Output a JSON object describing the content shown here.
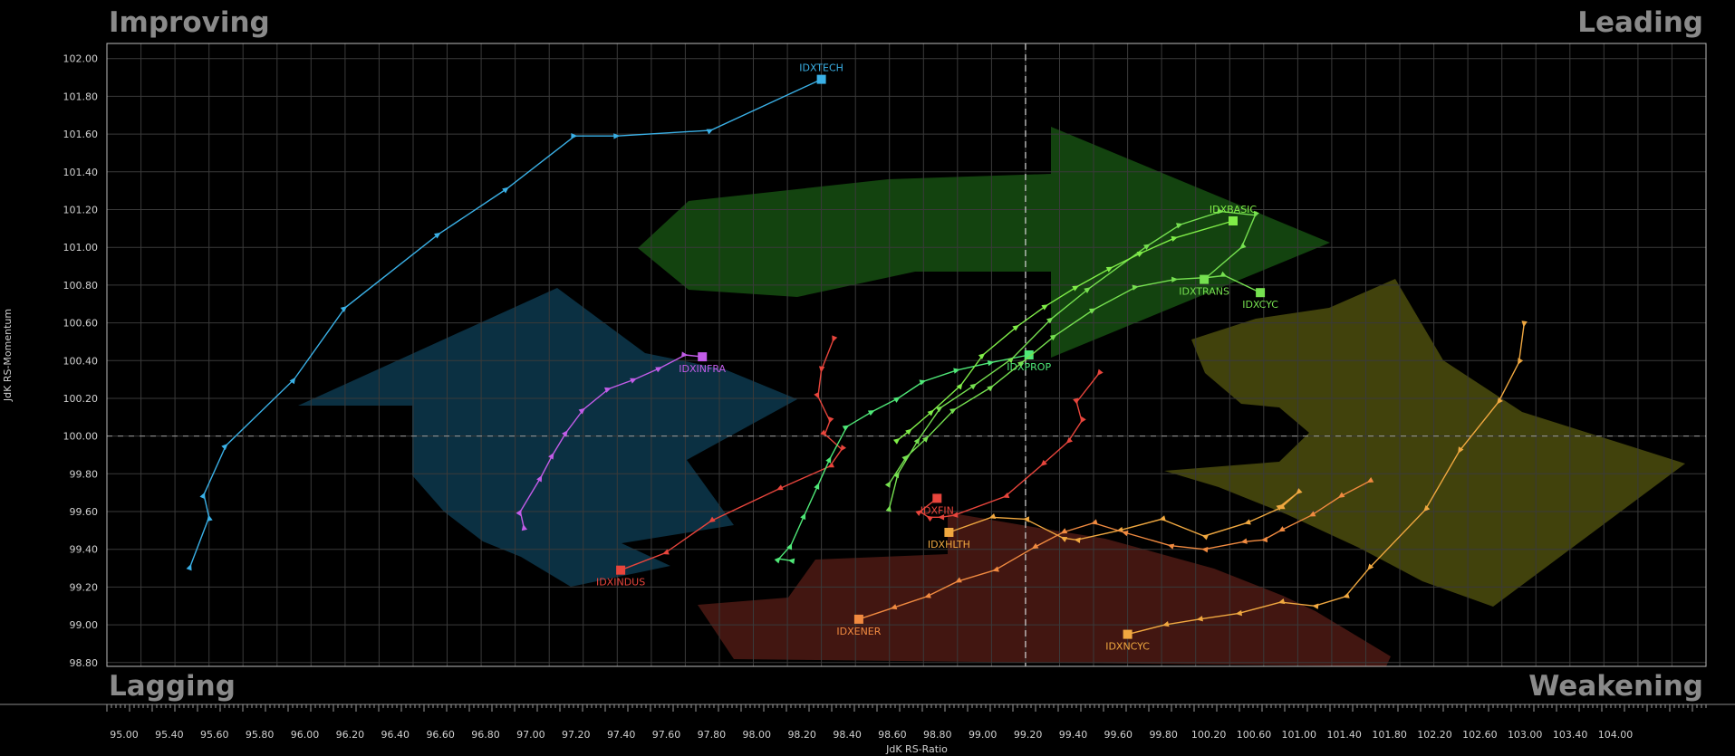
{
  "chart_data": {
    "type": "scatter",
    "title": "",
    "xlabel": "JdK RS-Ratio",
    "ylabel": "JdK RS-Momentum",
    "xlim": [
      94.6,
      104.0
    ],
    "ylim": [
      98.78,
      102.08
    ],
    "grid": true,
    "center": {
      "x": 100.0,
      "y": 100.0
    },
    "x_ticks": [
      "95.00",
      "95.40",
      "95.60",
      "95.80",
      "96.00",
      "96.20",
      "96.40",
      "96.60",
      "96.80",
      "97.00",
      "97.20",
      "97.40",
      "97.60",
      "97.80",
      "98.00",
      "98.20",
      "98.40",
      "98.60",
      "98.80",
      "99.00",
      "99.20",
      "99.40",
      "99.60",
      "99.80",
      "100.20",
      "100.60",
      "101.00",
      "101.40",
      "101.80",
      "102.20",
      "102.60",
      "103.00",
      "103.40",
      "104.00"
    ],
    "y_ticks": [
      "98.80",
      "99.00",
      "99.20",
      "99.40",
      "99.60",
      "99.80",
      "100.00",
      "100.20",
      "100.40",
      "100.60",
      "100.80",
      "101.00",
      "101.20",
      "101.40",
      "101.60",
      "101.80",
      "102.00"
    ],
    "quadrants": {
      "top_left": "Improving",
      "top_right": "Leading",
      "bottom_left": "Lagging",
      "bottom_right": "Weakening"
    },
    "series": [
      {
        "name": "IDXTECH",
        "color": "#3ab0e6",
        "points": [
          [
            95.09,
            99.31
          ],
          [
            95.2,
            99.57
          ],
          [
            95.17,
            99.69
          ],
          [
            95.3,
            99.95
          ],
          [
            95.7,
            100.3
          ],
          [
            96.0,
            100.68
          ],
          [
            96.55,
            101.07
          ],
          [
            96.95,
            101.31
          ],
          [
            97.35,
            101.59
          ],
          [
            97.6,
            101.59
          ],
          [
            98.15,
            101.62
          ],
          [
            98.8,
            101.89
          ]
        ]
      },
      {
        "name": "IDXINFRA",
        "color": "#c25ce8",
        "points": [
          [
            97.05,
            99.52
          ],
          [
            97.03,
            99.6
          ],
          [
            97.15,
            99.78
          ],
          [
            97.22,
            99.9
          ],
          [
            97.3,
            100.02
          ],
          [
            97.4,
            100.14
          ],
          [
            97.55,
            100.25
          ],
          [
            97.7,
            100.3
          ],
          [
            97.85,
            100.36
          ],
          [
            98.0,
            100.43
          ],
          [
            98.1,
            100.42
          ]
        ]
      },
      {
        "name": "IDXINDUS",
        "color": "#e8453c",
        "points": [
          [
            98.87,
            100.51
          ],
          [
            98.8,
            100.35
          ],
          [
            98.78,
            100.21
          ],
          [
            98.85,
            100.08
          ],
          [
            98.82,
            100.01
          ],
          [
            98.92,
            99.93
          ],
          [
            98.85,
            99.84
          ],
          [
            98.55,
            99.72
          ],
          [
            98.15,
            99.55
          ],
          [
            97.88,
            99.38
          ],
          [
            97.62,
            99.29
          ]
        ]
      },
      {
        "name": "IDXFIN",
        "color": "#e8453c",
        "points": [
          [
            100.43,
            100.33
          ],
          [
            100.3,
            100.18
          ],
          [
            100.33,
            100.08
          ],
          [
            100.25,
            99.97
          ],
          [
            100.1,
            99.85
          ],
          [
            99.88,
            99.68
          ],
          [
            99.58,
            99.58
          ],
          [
            99.5,
            99.57
          ],
          [
            99.43,
            99.57
          ],
          [
            99.38,
            99.6
          ],
          [
            99.48,
            99.67
          ]
        ]
      },
      {
        "name": "IDXPROP",
        "color": "#4fe878",
        "points": [
          [
            98.62,
            99.34
          ],
          [
            98.55,
            99.35
          ],
          [
            98.62,
            99.42
          ],
          [
            98.7,
            99.58
          ],
          [
            98.78,
            99.74
          ],
          [
            98.85,
            99.88
          ],
          [
            98.95,
            100.05
          ],
          [
            99.1,
            100.13
          ],
          [
            99.25,
            100.2
          ],
          [
            99.4,
            100.29
          ],
          [
            99.6,
            100.35
          ],
          [
            99.8,
            100.39
          ],
          [
            100.02,
            100.43
          ]
        ]
      },
      {
        "name": "IDXTRANS",
        "color": "#76e050",
        "points": [
          [
            99.2,
            99.62
          ],
          [
            99.25,
            99.8
          ],
          [
            99.37,
            99.98
          ],
          [
            99.5,
            100.15
          ],
          [
            99.7,
            100.27
          ],
          [
            99.92,
            100.41
          ],
          [
            100.15,
            100.62
          ],
          [
            100.37,
            100.78
          ],
          [
            100.72,
            101.01
          ],
          [
            100.91,
            101.12
          ],
          [
            101.15,
            101.19
          ],
          [
            101.35,
            101.17
          ],
          [
            101.27,
            101.0
          ],
          [
            101.05,
            100.83
          ]
        ]
      },
      {
        "name": "IDXBASIC",
        "color": "#80ee48",
        "points": [
          [
            99.25,
            99.98
          ],
          [
            99.32,
            100.03
          ],
          [
            99.45,
            100.13
          ],
          [
            99.62,
            100.27
          ],
          [
            99.75,
            100.43
          ],
          [
            99.95,
            100.58
          ],
          [
            100.12,
            100.69
          ],
          [
            100.3,
            100.79
          ],
          [
            100.5,
            100.89
          ],
          [
            100.68,
            100.97
          ],
          [
            100.88,
            101.05
          ],
          [
            101.22,
            101.14
          ]
        ]
      },
      {
        "name": "IDXCYC",
        "color": "#76e050",
        "points": [
          [
            99.2,
            99.75
          ],
          [
            99.3,
            99.89
          ],
          [
            99.42,
            99.99
          ],
          [
            99.58,
            100.14
          ],
          [
            99.8,
            100.26
          ],
          [
            99.98,
            100.39
          ],
          [
            100.17,
            100.53
          ],
          [
            100.4,
            100.67
          ],
          [
            100.65,
            100.79
          ],
          [
            100.88,
            100.83
          ],
          [
            101.07,
            100.84
          ],
          [
            101.17,
            100.85
          ],
          [
            101.38,
            100.76
          ]
        ]
      },
      {
        "name": "IDXHLTH",
        "color": "#f0a840",
        "points": [
          [
            101.5,
            99.63
          ],
          [
            101.6,
            99.7
          ],
          [
            101.5,
            99.62
          ],
          [
            101.3,
            99.54
          ],
          [
            101.05,
            99.47
          ],
          [
            100.8,
            99.56
          ],
          [
            100.55,
            99.5
          ],
          [
            100.3,
            99.45
          ],
          [
            100.22,
            99.46
          ],
          [
            100.0,
            99.56
          ],
          [
            99.8,
            99.57
          ],
          [
            99.55,
            99.49
          ]
        ]
      },
      {
        "name": "IDXENER",
        "color": "#f08a40",
        "points": [
          [
            102.02,
            99.76
          ],
          [
            101.85,
            99.68
          ],
          [
            101.68,
            99.58
          ],
          [
            101.5,
            99.5
          ],
          [
            101.4,
            99.45
          ],
          [
            101.28,
            99.44
          ],
          [
            101.05,
            99.4
          ],
          [
            100.85,
            99.42
          ],
          [
            100.58,
            99.49
          ],
          [
            100.4,
            99.54
          ],
          [
            100.22,
            99.49
          ],
          [
            100.05,
            99.41
          ],
          [
            99.82,
            99.29
          ],
          [
            99.6,
            99.23
          ],
          [
            99.42,
            99.15
          ],
          [
            99.22,
            99.09
          ],
          [
            99.02,
            99.03
          ]
        ]
      },
      {
        "name": "IDXNCYC",
        "color": "#f0a840",
        "points": [
          [
            102.93,
            100.59
          ],
          [
            102.9,
            100.39
          ],
          [
            102.78,
            100.18
          ],
          [
            102.55,
            99.92
          ],
          [
            102.35,
            99.61
          ],
          [
            102.02,
            99.3
          ],
          [
            101.88,
            99.15
          ],
          [
            101.7,
            99.1
          ],
          [
            101.5,
            99.12
          ],
          [
            101.25,
            99.06
          ],
          [
            101.02,
            99.03
          ],
          [
            100.82,
            99.0
          ],
          [
            100.6,
            98.95
          ]
        ]
      }
    ]
  }
}
